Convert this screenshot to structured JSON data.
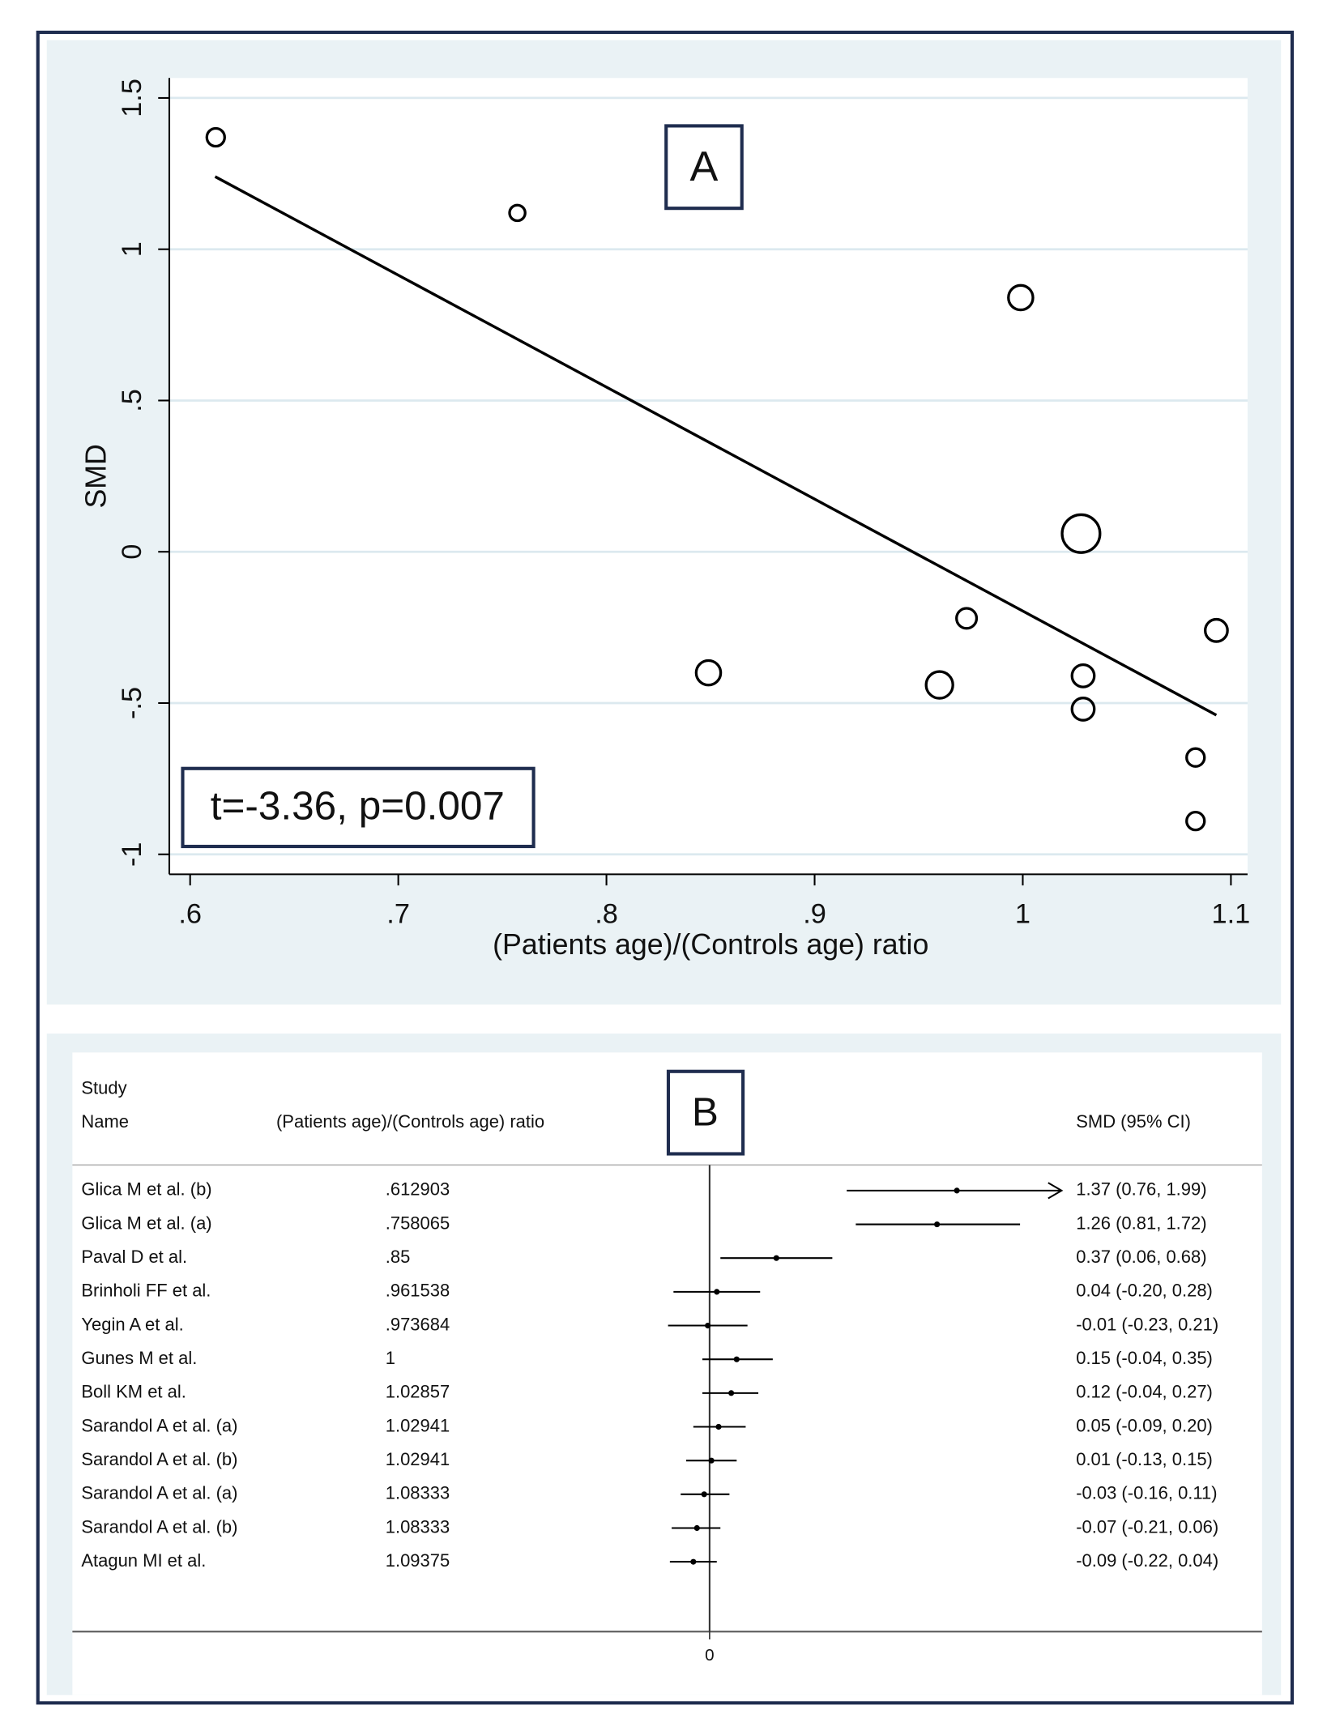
{
  "chart_data": [
    {
      "type": "scatter",
      "panel_label": "A",
      "annotation": "t=-3.36, p=0.007",
      "xlabel": "(Patients age)/(Controls age) ratio",
      "ylabel": "SMD",
      "x": [
        0.6123,
        0.7572,
        0.999,
        1.028,
        0.973,
        1.093,
        0.849,
        0.96,
        1.029,
        1.029,
        1.083,
        1.083
      ],
      "values": [
        1.37,
        1.12,
        0.84,
        0.06,
        -0.22,
        -0.26,
        -0.4,
        -0.44,
        -0.41,
        -0.52,
        -0.68,
        -0.89
      ],
      "sizes": [
        64,
        49,
        121,
        289,
        81,
        100,
        121,
        144,
        100,
        100,
        64,
        64
      ],
      "color": "#000000",
      "fit": {
        "x": [
          0.612,
          1.093
        ],
        "values": [
          1.24,
          -0.54
        ]
      },
      "xlim": [
        0.59,
        1.108
      ],
      "ylim": [
        -1.066,
        1.566
      ],
      "xticks": [
        {
          "value": 0.6,
          "label": ".6"
        },
        {
          "value": 0.7,
          "label": ".7"
        },
        {
          "value": 0.8,
          "label": ".8"
        },
        {
          "value": 0.9,
          "label": ".9"
        },
        1,
        1.1
      ],
      "yticks": [
        -1,
        {
          "value": -0.5,
          "label": "-.5"
        },
        0,
        {
          "value": 0.5,
          "label": ".5"
        },
        1,
        1.5
      ],
      "grid": true
    },
    {
      "type": "forest",
      "panel_label": "B",
      "headers": {
        "study": "Study",
        "name": "Name",
        "ratio": "(Patients age)/(Controls age) ratio",
        "smd": "SMD (95% CI)"
      },
      "categories": [
        "Glica M et al. (b)",
        "Glica M et al. (a)",
        "Paval D et al.",
        "Brinholi FF et al.",
        "Yegin A et al.",
        "Gunes M et al.",
        "Boll KM et al.",
        "Sarandol A et al. (a)",
        "Sarandol A et al. (b)",
        "Sarandol A et al. (a)",
        "Sarandol A et al. (b)",
        "Atagun MI et al."
      ],
      "ratio_labels": [
        ".612903",
        ".758065",
        ".85",
        ".961538",
        ".973684",
        "1",
        "1.02857",
        "1.02941",
        "1.02941",
        "1.08333",
        "1.08333",
        "1.09375"
      ],
      "values": [
        1.37,
        1.26,
        0.37,
        0.04,
        -0.01,
        0.15,
        0.12,
        0.05,
        0.01,
        -0.03,
        -0.07,
        -0.09
      ],
      "lower": [
        0.76,
        0.81,
        0.06,
        -0.2,
        -0.23,
        -0.04,
        -0.04,
        -0.09,
        -0.13,
        -0.16,
        -0.21,
        -0.22
      ],
      "upper": [
        1.99,
        1.72,
        0.68,
        0.28,
        0.21,
        0.35,
        0.27,
        0.2,
        0.15,
        0.11,
        0.06,
        0.04
      ],
      "value_labels": [
        "1.37 (0.76, 1.99)",
        "1.26 (0.81, 1.72)",
        "0.37 (0.06, 0.68)",
        "0.04 (-0.20, 0.28)",
        "-0.01 (-0.23, 0.21)",
        "0.15 (-0.04, 0.35)",
        "0.12 (-0.04, 0.27)",
        "0.05 (-0.09, 0.20)",
        "0.01 (-0.13, 0.15)",
        "-0.03 (-0.16, 0.11)",
        "-0.07 (-0.21, 0.06)",
        "-0.09 (-0.22, 0.04)"
      ],
      "color": "#000000",
      "xlim": [
        -0.5,
        1.95
      ],
      "xticks": [
        0
      ]
    }
  ]
}
